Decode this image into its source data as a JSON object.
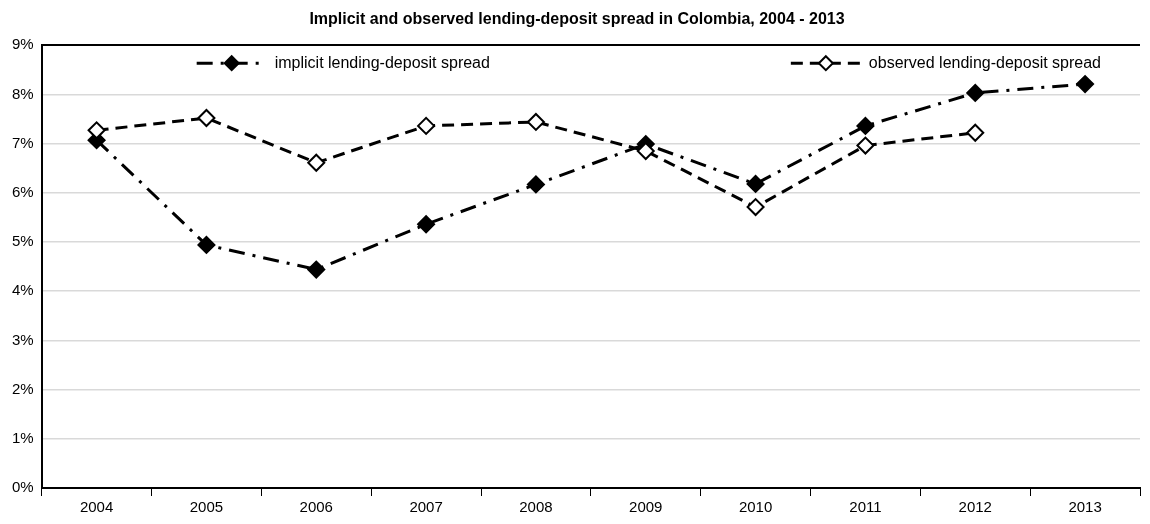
{
  "chart_data": {
    "type": "line",
    "title": "Implicit and observed lending-deposit spread in Colombia, 2004 - 2013",
    "categories": [
      "2004",
      "2005",
      "2006",
      "2007",
      "2008",
      "2009",
      "2010",
      "2011",
      "2012",
      "2013"
    ],
    "series": [
      {
        "name": "implicit lending-deposit spread",
        "color": "#000000",
        "line_style": "dashdot",
        "marker": "diamond",
        "values": [
          7.07,
          4.94,
          4.44,
          5.36,
          6.17,
          6.99,
          6.18,
          7.36,
          8.03,
          8.21
        ]
      },
      {
        "name": "observed lending-deposit spread",
        "color": "#000000",
        "line_style": "dashed",
        "marker": "diamond",
        "values": [
          7.27,
          7.52,
          6.61,
          7.36,
          7.44,
          6.85,
          5.71,
          6.96,
          7.22,
          null
        ]
      }
    ],
    "ylim": [
      0,
      9
    ],
    "yticks": [
      {
        "value": 0,
        "label": "0%"
      },
      {
        "value": 1,
        "label": "1%"
      },
      {
        "value": 2,
        "label": "2%"
      },
      {
        "value": 3,
        "label": "3%"
      },
      {
        "value": 4,
        "label": "4%"
      },
      {
        "value": 5,
        "label": "5%"
      },
      {
        "value": 6,
        "label": "6%"
      },
      {
        "value": 7,
        "label": "7%"
      },
      {
        "value": 8,
        "label": "8%"
      },
      {
        "value": 9,
        "label": "9%"
      }
    ],
    "grid": "y",
    "legend": "top"
  }
}
